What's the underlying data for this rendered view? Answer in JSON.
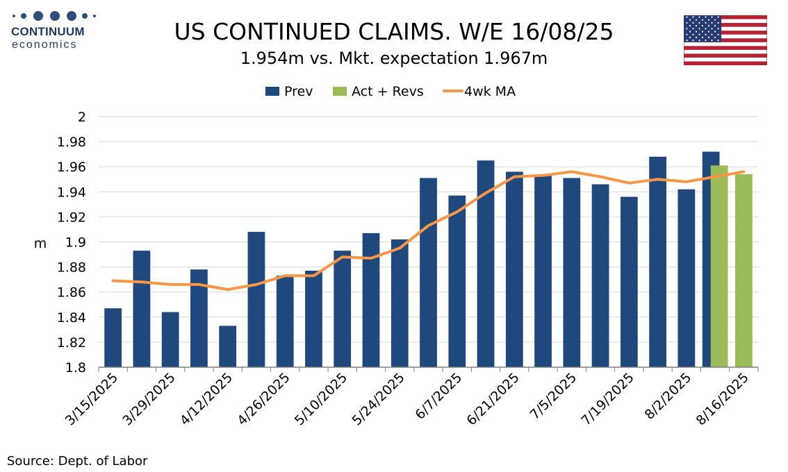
{
  "header": {
    "logo_name": "CONTINUUM",
    "logo_sub": "economics",
    "title": "US CONTINUED CLAIMS. W/E 16/08/25",
    "subtitle": "1.954m vs. Mkt. expectation 1.967m"
  },
  "footer": {
    "source": "Source: Dept. of Labor"
  },
  "flag_icon": "us-flag-icon",
  "colors": {
    "prev": "#1f497d",
    "act": "#9bbb59",
    "ma": "#f79646",
    "grid": "#d9d9d9",
    "logo": "#1f3b64"
  },
  "chart_data": {
    "type": "bar",
    "title": "US CONTINUED CLAIMS. W/E 16/08/25",
    "subtitle": "1.954m vs. Mkt. expectation 1.967m",
    "ylabel": "m",
    "ylim": [
      1.8,
      2.0
    ],
    "yticks": [
      1.8,
      1.82,
      1.84,
      1.86,
      1.88,
      1.9,
      1.92,
      1.94,
      1.96,
      1.98,
      2
    ],
    "ytick_labels": [
      "1.8",
      "1.82",
      "1.84",
      "1.86",
      "1.88",
      "1.9",
      "1.92",
      "1.94",
      "1.96",
      "1.98",
      "2"
    ],
    "categories": [
      "3/15/2025",
      "3/22/2025",
      "3/29/2025",
      "4/5/2025",
      "4/12/2025",
      "4/19/2025",
      "4/26/2025",
      "5/3/2025",
      "5/10/2025",
      "5/17/2025",
      "5/24/2025",
      "5/31/2025",
      "6/7/2025",
      "6/14/2025",
      "6/21/2025",
      "6/28/2025",
      "7/5/2025",
      "7/12/2025",
      "7/19/2025",
      "7/26/2025",
      "8/2/2025",
      "8/9/2025",
      "8/16/2025"
    ],
    "xtick_labels": [
      "3/15/2025",
      "3/29/2025",
      "4/12/2025",
      "4/26/2025",
      "5/10/2025",
      "5/24/2025",
      "6/7/2025",
      "6/21/2025",
      "7/5/2025",
      "7/19/2025",
      "8/2/2025",
      "8/16/2025"
    ],
    "legend_position": "top",
    "grid": true,
    "series": [
      {
        "name": "Prev",
        "type": "bar",
        "color": "#1f497d",
        "values": [
          1.847,
          1.893,
          1.844,
          1.878,
          1.833,
          1.908,
          1.873,
          1.877,
          1.893,
          1.907,
          1.902,
          1.951,
          1.937,
          1.965,
          1.956,
          1.953,
          1.951,
          1.946,
          1.936,
          1.968,
          1.942,
          1.972,
          null
        ]
      },
      {
        "name": "Act + Revs",
        "type": "bar",
        "color": "#9bbb59",
        "values": [
          null,
          null,
          null,
          null,
          null,
          null,
          null,
          null,
          null,
          null,
          null,
          null,
          null,
          null,
          null,
          null,
          null,
          null,
          null,
          null,
          null,
          1.961,
          1.954
        ]
      },
      {
        "name": "4wk MA",
        "type": "line",
        "color": "#f79646",
        "values": [
          1.869,
          1.868,
          1.866,
          1.866,
          1.862,
          1.866,
          1.873,
          1.873,
          1.888,
          1.887,
          1.895,
          1.913,
          1.924,
          1.939,
          1.952,
          1.953,
          1.956,
          1.952,
          1.947,
          1.95,
          1.948,
          1.952,
          1.956
        ]
      }
    ]
  }
}
